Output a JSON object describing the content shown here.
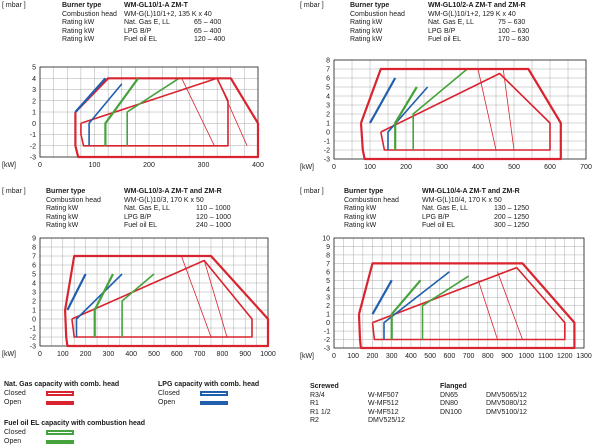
{
  "colors": {
    "nat_gas": "#d9232e",
    "lpg": "#1f5fae",
    "fuel_oil": "#46a23c",
    "grid": "#999999",
    "frame": "#222222"
  },
  "labels": {
    "unit_y": "[ mbar ]",
    "unit_x": "[kW]"
  },
  "chart_data": [
    {
      "type": "line",
      "header": {
        "burner_type_label": "Burner type",
        "burner_type": "WM-GL10/1-A ZM-T",
        "rows": [
          {
            "k": "Combustion head",
            "v1": "WM-G(L)10/1+2, 135 K x 40",
            "v2": ""
          },
          {
            "k": "Rating kW",
            "v1": "Nat. Gas E, LL",
            "v2": "65 – 400"
          },
          {
            "k": "Rating kW",
            "v1": "LPG B/P",
            "v2": "65 – 400"
          },
          {
            "k": "Rating kW",
            "v1": "Fuel oil EL",
            "v2": "120 – 400"
          }
        ]
      },
      "xlim": [
        0,
        400
      ],
      "xticks": [
        0,
        100,
        200,
        300,
        400
      ],
      "ylim": [
        -3,
        5
      ],
      "yticks": [
        -3,
        -2,
        -1,
        0,
        1,
        2,
        3,
        4,
        5
      ],
      "series": [
        {
          "name": "Nat. Gas capacity with comb. head – Closed",
          "style": "closed",
          "color": "nat_gas",
          "points": [
            [
              65,
              1
            ],
            [
              65,
              -2
            ],
            [
              70,
              -3
            ],
            [
              400,
              -3
            ],
            [
              400,
              0
            ],
            [
              350,
              4
            ],
            [
              260,
              4
            ],
            [
              125,
              4
            ],
            [
              65,
              1
            ]
          ]
        },
        {
          "name": "Nat. Gas capacity with comb. head – Open",
          "style": "open",
          "color": "nat_gas",
          "points": [
            [
              75,
              0
            ],
            [
              75,
              -1
            ],
            [
              80,
              -2
            ],
            [
              345,
              -2
            ],
            [
              345,
              2
            ],
            [
              325,
              4
            ],
            [
              75,
              0
            ]
          ]
        },
        {
          "name": "LPG capacity with comb. head – Closed",
          "style": "closed",
          "color": "lpg",
          "points": [
            [
              65,
              1
            ],
            [
              120,
              4
            ]
          ]
        },
        {
          "name": "LPG capacity with comb. head – Open",
          "style": "open",
          "color": "lpg",
          "points": [
            [
              90,
              -2
            ],
            [
              90,
              0
            ],
            [
              150,
              3.5
            ]
          ]
        },
        {
          "name": "Fuel oil EL capacity with combustion head – Closed",
          "style": "closed",
          "color": "fuel_oil",
          "points": [
            [
              120,
              -2
            ],
            [
              120,
              0
            ],
            [
              180,
              4
            ]
          ]
        },
        {
          "name": "Fuel oil EL capacity with combustion head – Open",
          "style": "open",
          "color": "fuel_oil",
          "points": [
            [
              160,
              -2
            ],
            [
              160,
              1
            ],
            [
              255,
              4
            ]
          ]
        },
        {
          "name": "",
          "style": "thin",
          "color": "nat_gas",
          "points": [
            [
              260,
              4
            ],
            [
              320,
              -2
            ]
          ]
        },
        {
          "name": "",
          "style": "thin",
          "color": "nat_gas",
          "points": [
            [
              325,
              4
            ],
            [
              380,
              -2
            ]
          ]
        }
      ]
    },
    {
      "type": "line",
      "header": {
        "burner_type_label": "Burner type",
        "burner_type": "WM-GL10/2-A ZM-T and ZM-R",
        "rows": [
          {
            "k": "Combustion head",
            "v1": "WM-G(L)10/1+2, 129 K x 40",
            "v2": ""
          },
          {
            "k": "Rating kW",
            "v1": "Nat. Gas E, LL",
            "v2": "75 – 630"
          },
          {
            "k": "Rating kW",
            "v1": "LPG B/P",
            "v2": "100 – 630"
          },
          {
            "k": "Rating kW",
            "v1": "Fuel oil EL",
            "v2": "170 – 630"
          }
        ]
      },
      "xlim": [
        0,
        700
      ],
      "xticks": [
        0,
        100,
        200,
        300,
        400,
        500,
        600,
        700
      ],
      "ylim": [
        -3,
        8
      ],
      "yticks": [
        -3,
        -2,
        -1,
        0,
        1,
        2,
        3,
        4,
        5,
        6,
        7,
        8
      ],
      "series": [
        {
          "name": "Nat. Gas capacity with comb. head – Closed",
          "style": "closed",
          "color": "nat_gas",
          "points": [
            [
              75,
              1
            ],
            [
              80,
              -2
            ],
            [
              85,
              -3
            ],
            [
              630,
              -3
            ],
            [
              630,
              1
            ],
            [
              540,
              7
            ],
            [
              450,
              7
            ],
            [
              130,
              7
            ],
            [
              75,
              1
            ]
          ]
        },
        {
          "name": "Nat. Gas capacity with comb. head – Open",
          "style": "open",
          "color": "nat_gas",
          "points": [
            [
              130,
              0
            ],
            [
              135,
              -1
            ],
            [
              140,
              -2
            ],
            [
              600,
              -2
            ],
            [
              600,
              1
            ],
            [
              460,
              6.5
            ],
            [
              130,
              0
            ]
          ]
        },
        {
          "name": "LPG capacity with comb. head – Closed",
          "style": "closed",
          "color": "lpg",
          "points": [
            [
              100,
              1
            ],
            [
              170,
              6
            ]
          ]
        },
        {
          "name": "LPG capacity with comb. head – Open",
          "style": "open",
          "color": "lpg",
          "points": [
            [
              150,
              -2
            ],
            [
              150,
              0
            ],
            [
              260,
              5
            ]
          ]
        },
        {
          "name": "Fuel oil EL capacity with combustion head – Closed",
          "style": "closed",
          "color": "fuel_oil",
          "points": [
            [
              170,
              -2
            ],
            [
              170,
              1
            ],
            [
              230,
              5
            ]
          ]
        },
        {
          "name": "Fuel oil EL capacity with combustion head – Open",
          "style": "open",
          "color": "fuel_oil",
          "points": [
            [
              220,
              -2
            ],
            [
              220,
              2
            ],
            [
              370,
              7
            ]
          ]
        },
        {
          "name": "",
          "style": "thin",
          "color": "nat_gas",
          "points": [
            [
              400,
              7
            ],
            [
              450,
              -2
            ]
          ]
        },
        {
          "name": "",
          "style": "thin",
          "color": "nat_gas",
          "points": [
            [
              470,
              7
            ],
            [
              500,
              -2
            ]
          ]
        }
      ]
    },
    {
      "type": "line",
      "header": {
        "burner_type_label": "Burner type",
        "burner_type": "WM-GL10/3-A ZM-T and ZM-R",
        "rows": [
          {
            "k": "Combustion head",
            "v1": "WM-G(L)10/3, 170 K x 50",
            "v2": ""
          },
          {
            "k": "Rating kW",
            "v1": "Nat. Gas E, LL",
            "v2": "110 – 1000"
          },
          {
            "k": "Rating kW",
            "v1": "LPG B/P",
            "v2": "120 – 1000"
          },
          {
            "k": "Rating kW",
            "v1": "Fuel oil EL",
            "v2": "240 – 1000"
          }
        ]
      },
      "xlim": [
        0,
        1000
      ],
      "xticks": [
        0,
        100,
        200,
        300,
        400,
        500,
        600,
        700,
        800,
        900,
        1000
      ],
      "ylim": [
        -3,
        9
      ],
      "yticks": [
        -3,
        -2,
        -1,
        0,
        1,
        2,
        3,
        4,
        5,
        6,
        7,
        8,
        9
      ],
      "series": [
        {
          "name": "Nat. Gas capacity with comb. head – Closed",
          "style": "closed",
          "color": "nat_gas",
          "points": [
            [
              110,
              1
            ],
            [
              115,
              -2
            ],
            [
              120,
              -3
            ],
            [
              1000,
              -3
            ],
            [
              1000,
              0
            ],
            [
              750,
              7
            ],
            [
              150,
              7
            ],
            [
              110,
              1
            ]
          ]
        },
        {
          "name": "Nat. Gas capacity with comb. head – Open",
          "style": "open",
          "color": "nat_gas",
          "points": [
            [
              140,
              0
            ],
            [
              145,
              -1
            ],
            [
              150,
              -2
            ],
            [
              930,
              -2
            ],
            [
              930,
              0
            ],
            [
              720,
              6.5
            ],
            [
              140,
              0
            ]
          ]
        },
        {
          "name": "LPG capacity with comb. head – Closed",
          "style": "closed",
          "color": "lpg",
          "points": [
            [
              120,
              1
            ],
            [
              200,
              5
            ]
          ]
        },
        {
          "name": "LPG capacity with comb. head – Open",
          "style": "open",
          "color": "lpg",
          "points": [
            [
              160,
              -2
            ],
            [
              160,
              0
            ],
            [
              360,
              5
            ]
          ]
        },
        {
          "name": "Fuel oil EL capacity with combustion head – Closed",
          "style": "closed",
          "color": "fuel_oil",
          "points": [
            [
              240,
              -2
            ],
            [
              240,
              1
            ],
            [
              320,
              5
            ]
          ]
        },
        {
          "name": "Fuel oil EL capacity with combustion head – Open",
          "style": "open",
          "color": "fuel_oil",
          "points": [
            [
              360,
              -2
            ],
            [
              360,
              2
            ],
            [
              500,
              5
            ]
          ]
        },
        {
          "name": "",
          "style": "thin",
          "color": "nat_gas",
          "points": [
            [
              620,
              7
            ],
            [
              750,
              -2
            ]
          ]
        },
        {
          "name": "",
          "style": "thin",
          "color": "nat_gas",
          "points": [
            [
              720,
              6.5
            ],
            [
              820,
              -2
            ]
          ]
        }
      ]
    },
    {
      "type": "line",
      "header": {
        "burner_type_label": "Burner type",
        "burner_type": "WM-GL10/4-A ZM-T and ZM-R",
        "rows": [
          {
            "k": "Combustion head",
            "v1": "WM-G(L)10/4, 170 K x 50",
            "v2": ""
          },
          {
            "k": "Rating kW",
            "v1": "Nat. Gas E, LL",
            "v2": "130 – 1250"
          },
          {
            "k": "Rating kW",
            "v1": "LPG B/P",
            "v2": "200 – 1250"
          },
          {
            "k": "Rating kW",
            "v1": "Fuel oil EL",
            "v2": "300 – 1250"
          }
        ]
      },
      "xlim": [
        0,
        1300
      ],
      "xticks": [
        0,
        100,
        200,
        300,
        400,
        500,
        600,
        700,
        800,
        900,
        1000,
        1100,
        1200,
        1300
      ],
      "ylim": [
        -3,
        10
      ],
      "yticks": [
        -3,
        -2,
        -1,
        0,
        1,
        2,
        3,
        4,
        5,
        6,
        7,
        8,
        9,
        10
      ],
      "series": [
        {
          "name": "Nat. Gas capacity with comb. head – Closed",
          "style": "closed",
          "color": "nat_gas",
          "points": [
            [
              130,
              1
            ],
            [
              135,
              -2
            ],
            [
              140,
              -3
            ],
            [
              1250,
              -3
            ],
            [
              1250,
              0
            ],
            [
              980,
              7
            ],
            [
              200,
              7
            ],
            [
              130,
              1
            ]
          ]
        },
        {
          "name": "Nat. Gas capacity with comb. head – Open",
          "style": "open",
          "color": "nat_gas",
          "points": [
            [
              200,
              0
            ],
            [
              205,
              -1
            ],
            [
              210,
              -2
            ],
            [
              1200,
              -2
            ],
            [
              1200,
              0
            ],
            [
              950,
              6.5
            ],
            [
              200,
              0
            ]
          ]
        },
        {
          "name": "LPG capacity with comb. head – Closed",
          "style": "closed",
          "color": "lpg",
          "points": [
            [
              200,
              1
            ],
            [
              300,
              5
            ]
          ]
        },
        {
          "name": "LPG capacity with comb. head – Open",
          "style": "open",
          "color": "lpg",
          "points": [
            [
              260,
              -2
            ],
            [
              260,
              0
            ],
            [
              600,
              6
            ]
          ]
        },
        {
          "name": "Fuel oil EL capacity with combustion head – Closed",
          "style": "closed",
          "color": "fuel_oil",
          "points": [
            [
              300,
              -2
            ],
            [
              300,
              1
            ],
            [
              450,
              5
            ]
          ]
        },
        {
          "name": "Fuel oil EL capacity with combustion head – Open",
          "style": "open",
          "color": "fuel_oil",
          "points": [
            [
              460,
              -2
            ],
            [
              460,
              2
            ],
            [
              700,
              5.5
            ]
          ]
        },
        {
          "name": "",
          "style": "thin",
          "color": "nat_gas",
          "points": [
            [
              750,
              5
            ],
            [
              850,
              -2
            ]
          ]
        },
        {
          "name": "",
          "style": "thin",
          "color": "nat_gas",
          "points": [
            [
              850,
              6
            ],
            [
              980,
              -2
            ]
          ]
        }
      ]
    }
  ],
  "legend": {
    "nat_gas": {
      "title": "Nat. Gas capacity with comb. head",
      "closed": "Closed",
      "open": "Open"
    },
    "lpg": {
      "title": "LPG capacity with comb. head",
      "closed": "Closed",
      "open": "Open"
    },
    "fuel_oil": {
      "title": "Fuel oil EL capacity with combustion head",
      "closed": "Closed",
      "open": "Open"
    }
  },
  "valves": {
    "screwed": {
      "title": "Screwed",
      "rows": [
        {
          "size": "R3/4",
          "model": "W-MF507"
        },
        {
          "size": "R1",
          "model": "W-MF512"
        },
        {
          "size": "R1 1/2",
          "model": "W-MF512"
        },
        {
          "size": "R2",
          "model": "DMV525/12"
        }
      ]
    },
    "flanged": {
      "title": "Flanged",
      "rows": [
        {
          "size": "DN65",
          "model": "DMV5065/12"
        },
        {
          "size": "DN80",
          "model": "DMV5080/12"
        },
        {
          "size": "DN100",
          "model": "DMV5100/12"
        }
      ]
    }
  }
}
